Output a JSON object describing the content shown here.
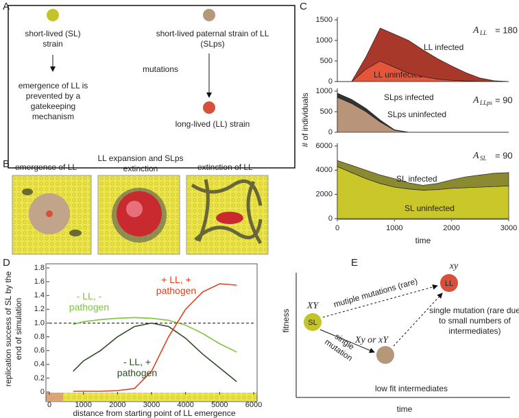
{
  "panel_labels": [
    "A",
    "B",
    "C",
    "D",
    "E"
  ],
  "panel_a": {
    "sl_strain": "short-lived (SL) strain",
    "sl_outcome": "emergence of LL is prevented by a gatekeeping mechanism",
    "slps_strain": "short-lived paternal strain of LL (SLps)",
    "mutations": "mutations",
    "ll_strain": "long-lived (LL) strain"
  },
  "panel_b": {
    "captions": [
      "emergence of LL",
      "LL expansion and SLps extinction",
      "extinction of LL"
    ]
  },
  "panel_e": {
    "y_label": "fitness",
    "x_label": "time",
    "nodes": [
      {
        "label": "SL",
        "genotype": "XY"
      },
      {
        "label": "LL",
        "genotype": "xy"
      },
      {
        "genotype": "Xy or xY",
        "caption": "low fit intermediates"
      }
    ],
    "edges": [
      "mutiple mutations (rare)",
      "single mutation",
      "single mutation (rare due to small numbers of intermediates)"
    ]
  },
  "chart_data": [
    {
      "type": "area",
      "annotation": {
        "symbol": "A",
        "subscript": "LL",
        "text": "= 180"
      },
      "x": [
        0,
        250,
        500,
        750,
        1000,
        1250,
        1500,
        1750,
        2000,
        2250,
        2500,
        2750,
        3000
      ],
      "xlim": [
        0,
        3000
      ],
      "ylim": [
        0,
        1500
      ],
      "yticks": [
        0,
        500,
        1000,
        1500
      ],
      "series": [
        {
          "name": "LL uninfected",
          "color": "#e5553a",
          "values": [
            0,
            0,
            300,
            500,
            350,
            200,
            120,
            60,
            30,
            15,
            5,
            0,
            0
          ]
        },
        {
          "name": "LL infected",
          "color": "#a8382a",
          "values": [
            0,
            0,
            300,
            800,
            800,
            800,
            650,
            500,
            350,
            200,
            80,
            20,
            0
          ]
        }
      ]
    },
    {
      "type": "area",
      "annotation": {
        "symbol": "A",
        "subscript": "LLps",
        "text": "= 90"
      },
      "y_label": "# of individuals",
      "x": [
        0,
        250,
        500,
        750,
        1000,
        1250,
        1500,
        1750,
        2000,
        2250,
        2500,
        2750,
        3000
      ],
      "xlim": [
        0,
        3000
      ],
      "ylim": [
        0,
        1000
      ],
      "yticks": [
        0,
        500,
        1000
      ],
      "series": [
        {
          "name": "SLps uninfected",
          "color": "#b8957a",
          "values": [
            850,
            700,
            500,
            250,
            50,
            0,
            0,
            0,
            0,
            0,
            0,
            0,
            0
          ]
        },
        {
          "name": "SLps infected",
          "color": "#333333",
          "values": [
            100,
            100,
            80,
            50,
            10,
            0,
            0,
            0,
            0,
            0,
            0,
            0,
            0
          ]
        }
      ]
    },
    {
      "type": "area",
      "annotation": {
        "symbol": "A",
        "subscript": "SL",
        "text": "= 90"
      },
      "x_label": "time",
      "x": [
        0,
        250,
        500,
        750,
        1000,
        1250,
        1500,
        1750,
        2000,
        2250,
        2500,
        2750,
        3000
      ],
      "xlim": [
        0,
        3000
      ],
      "xticks": [
        0,
        1000,
        2000,
        3000
      ],
      "ylim": [
        0,
        6000
      ],
      "yticks": [
        0,
        2000,
        4000,
        6000
      ],
      "series": [
        {
          "name": "SL uninfected",
          "color": "#c9c72a",
          "values": [
            4300,
            3800,
            3300,
            2900,
            2600,
            2450,
            2350,
            2400,
            2500,
            2550,
            2600,
            2650,
            2700
          ]
        },
        {
          "name": "SL infected",
          "color": "#8c8a30",
          "values": [
            500,
            600,
            700,
            700,
            700,
            500,
            400,
            500,
            700,
            900,
            1000,
            1100,
            1100
          ]
        }
      ]
    },
    {
      "type": "line",
      "y_label": "replication success of SL by the end of simulation",
      "x_label": "distance from starting point of LL emergence",
      "x": [
        700,
        1000,
        1500,
        2000,
        2500,
        3000,
        3500,
        4000,
        4500,
        5000,
        5500
      ],
      "xlim": [
        0,
        6000
      ],
      "xticks": [
        0,
        1000,
        2000,
        3000,
        4000,
        5000,
        6000
      ],
      "ylim": [
        0,
        1.8
      ],
      "yticks": [
        0,
        0.2,
        0.4,
        0.6,
        0.8,
        {
          "value": 1,
          "label": "1.0"
        },
        1.2,
        1.4,
        1.6,
        1.8
      ],
      "hline": 1,
      "series": [
        {
          "name": "- LL, - pathogen",
          "color": "#7dc242",
          "values": [
            0.98,
            1.02,
            1.05,
            1.07,
            1.08,
            1.07,
            1.04,
            0.97,
            0.85,
            0.7,
            0.58
          ]
        },
        {
          "name": "- LL, + pathogen",
          "color": "#2f4a25",
          "values": [
            0.3,
            0.45,
            0.6,
            0.8,
            0.95,
            1.0,
            0.95,
            0.78,
            0.55,
            0.35,
            0.15
          ]
        },
        {
          "name": "+ LL, + pathogen",
          "color": "#e0401c",
          "values": [
            0.01,
            0.01,
            0.01,
            0.02,
            0.05,
            0.3,
            0.8,
            1.2,
            1.45,
            1.57,
            1.55
          ]
        }
      ]
    }
  ]
}
